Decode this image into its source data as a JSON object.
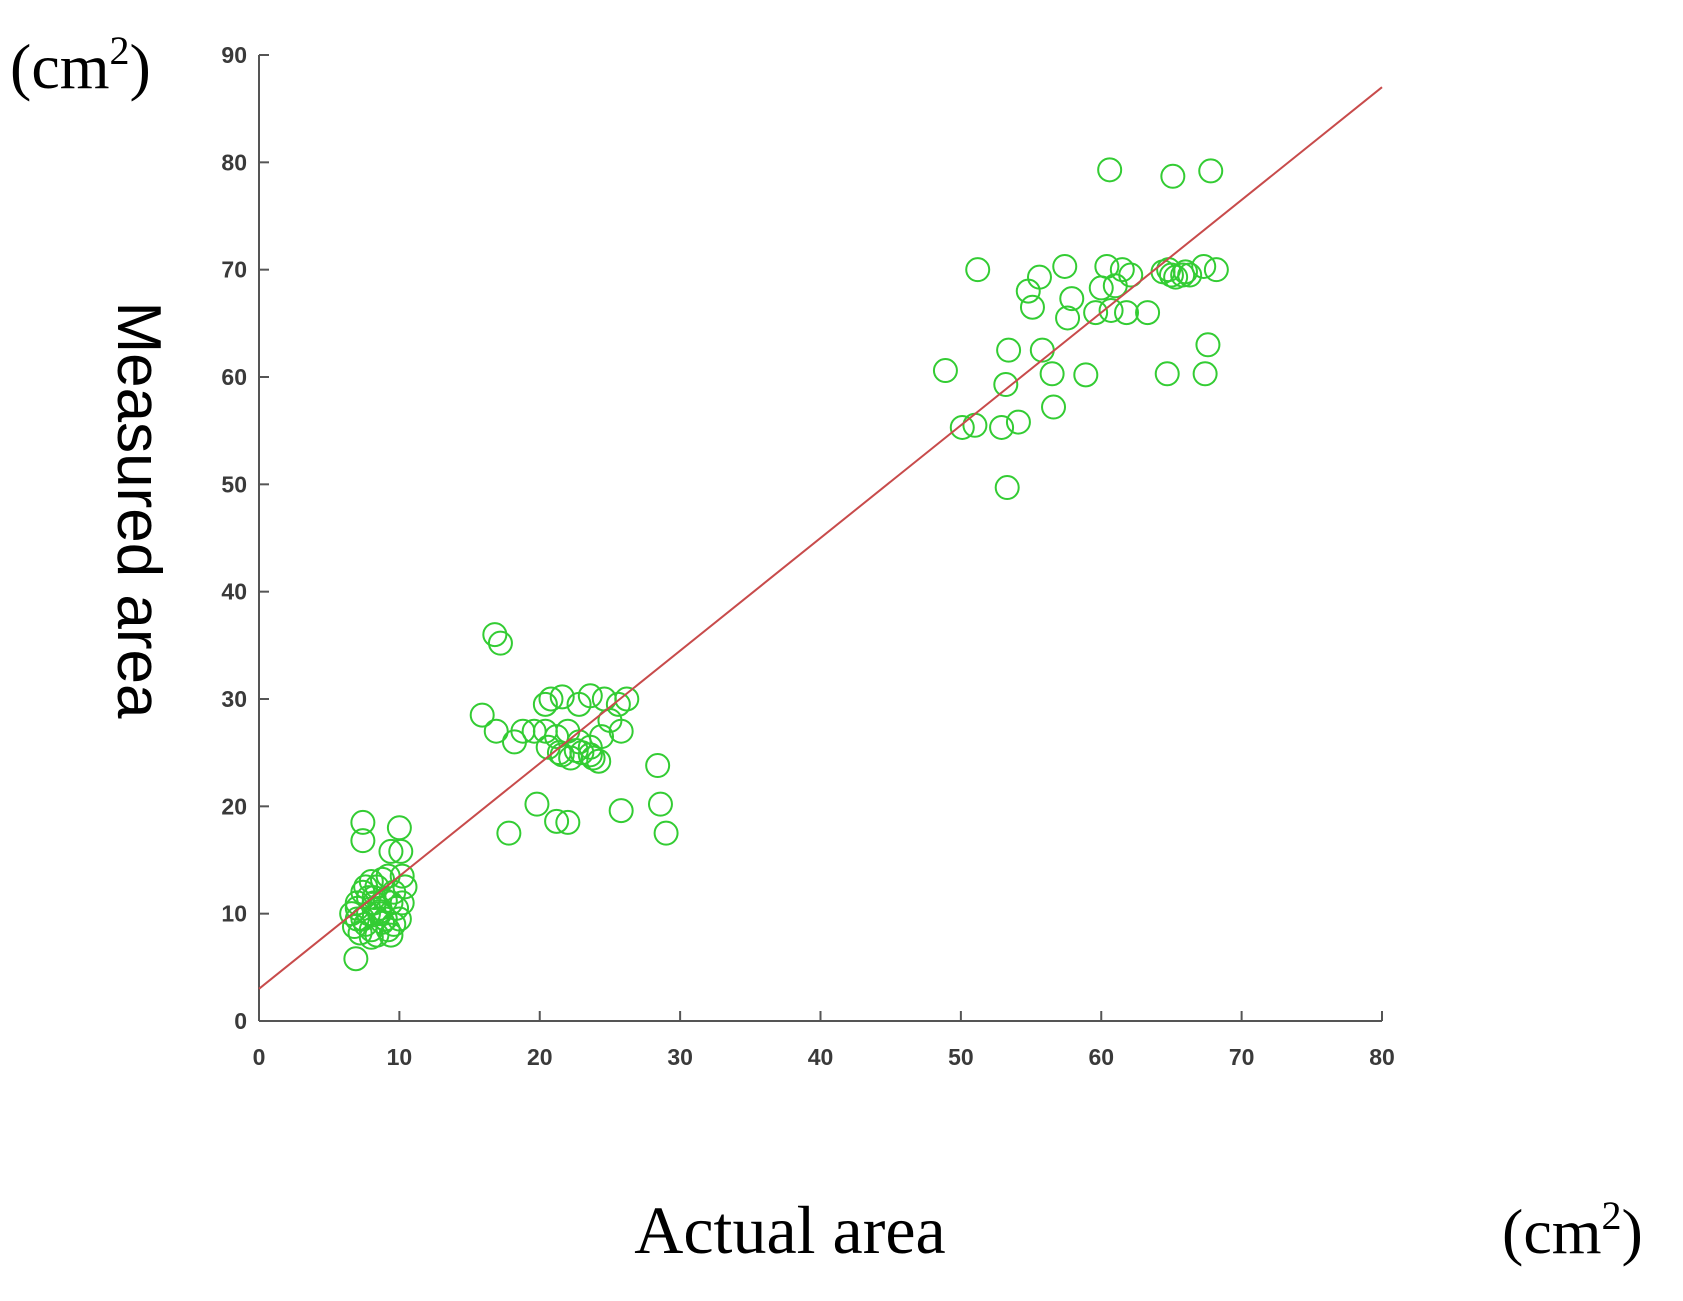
{
  "chart_data": {
    "type": "scatter",
    "title": "",
    "xlabel": "Actual area",
    "ylabel": "Measured area",
    "x_unit": {
      "open": "(cm",
      "sup": "2",
      "close": ")"
    },
    "y_unit": {
      "open": "(cm",
      "sup": "2",
      "close": ")"
    },
    "xlim": [
      0,
      80
    ],
    "ylim": [
      0,
      90
    ],
    "x_ticks": [
      "0",
      "10",
      "20",
      "30",
      "40",
      "50",
      "60",
      "70",
      "80"
    ],
    "y_ticks": [
      "0",
      "10",
      "20",
      "30",
      "40",
      "50",
      "60",
      "70",
      "80",
      "90"
    ],
    "grid": false,
    "legend": "none",
    "colors": {
      "points": "#33cc33",
      "fit_line": "#c84b4b",
      "axis": "#555555"
    },
    "series": [
      {
        "type": "scatter",
        "marker": "open-circle",
        "x": [
          7.4,
          7.4,
          7.0,
          10.0,
          9.4,
          10.1,
          7.0,
          7.6,
          8.0,
          8.4,
          8.8,
          9.2,
          9.6,
          10.2,
          10.4,
          6.6,
          7.0,
          7.4,
          7.8,
          8.2,
          8.6,
          9.0,
          9.4,
          9.8,
          10.2,
          6.8,
          7.2,
          7.6,
          8.0,
          8.4,
          8.8,
          9.2,
          9.6,
          10.0,
          7.4,
          7.8,
          8.2,
          8.6,
          9.0,
          9.4,
          8.0,
          8.6,
          6.9,
          16.8,
          17.2,
          15.9,
          16.9,
          18.2,
          18.8,
          19.6,
          20.4,
          20.8,
          21.6,
          22.8,
          23.6,
          24.6,
          25.6,
          26.2,
          20.4,
          21.2,
          22.0,
          22.8,
          23.6,
          24.4,
          25.0,
          25.8,
          20.6,
          21.4,
          22.2,
          23.0,
          23.8,
          21.6,
          22.6,
          23.6,
          24.2,
          19.8,
          21.2,
          22.0,
          17.8,
          25.8,
          28.6,
          29.0,
          28.4,
          48.9,
          51.2,
          50.1,
          51.0,
          52.9,
          53.2,
          53.4,
          54.1,
          54.8,
          55.1,
          55.6,
          55.8,
          56.6,
          56.5,
          57.4,
          57.6,
          57.9,
          58.9,
          59.6,
          60.0,
          60.4,
          60.7,
          61.0,
          61.5,
          61.8,
          62.1,
          63.3,
          64.4,
          64.8,
          65.0,
          65.3,
          65.8,
          66.0,
          66.3,
          67.3,
          67.6,
          68.2,
          67.4,
          60.6,
          65.1,
          67.8,
          64.7,
          53.3
        ],
        "y": [
          18.5,
          16.8,
          9.5,
          18.0,
          15.8,
          15.8,
          11.0,
          12.5,
          13.0,
          12.5,
          13.2,
          13.5,
          12.0,
          13.5,
          12.5,
          10.0,
          10.5,
          9.5,
          10.0,
          11.0,
          10.5,
          11.2,
          11.0,
          10.5,
          11.0,
          8.8,
          8.2,
          9.0,
          8.5,
          8.0,
          9.2,
          8.5,
          9.0,
          9.5,
          12.0,
          11.5,
          11.5,
          10.0,
          9.5,
          8.0,
          7.8,
          10.2,
          5.8,
          36.0,
          35.2,
          28.5,
          27.0,
          26.0,
          27.0,
          27.0,
          29.5,
          30.0,
          30.2,
          29.5,
          30.3,
          30.0,
          29.5,
          30.0,
          27.0,
          26.5,
          27.0,
          26.0,
          25.5,
          26.5,
          28.0,
          27.0,
          25.5,
          25.0,
          24.5,
          25.0,
          24.5,
          24.8,
          25.2,
          24.8,
          24.2,
          20.2,
          18.6,
          18.5,
          17.5,
          19.6,
          20.2,
          17.5,
          23.8,
          60.6,
          70.0,
          55.3,
          55.5,
          55.3,
          59.3,
          62.5,
          55.8,
          68.0,
          66.5,
          69.3,
          62.5,
          57.2,
          60.3,
          70.3,
          65.5,
          67.3,
          60.2,
          66.0,
          68.3,
          70.3,
          66.2,
          68.5,
          70.0,
          66.0,
          69.5,
          66.0,
          69.8,
          70.0,
          69.5,
          69.3,
          69.5,
          69.8,
          69.5,
          70.3,
          63.0,
          70.0,
          60.3,
          79.3,
          78.7,
          79.2,
          60.3,
          49.7
        ]
      },
      {
        "type": "line",
        "style": "fit",
        "x": [
          0,
          80
        ],
        "y": [
          3.0,
          87.0
        ]
      }
    ]
  }
}
